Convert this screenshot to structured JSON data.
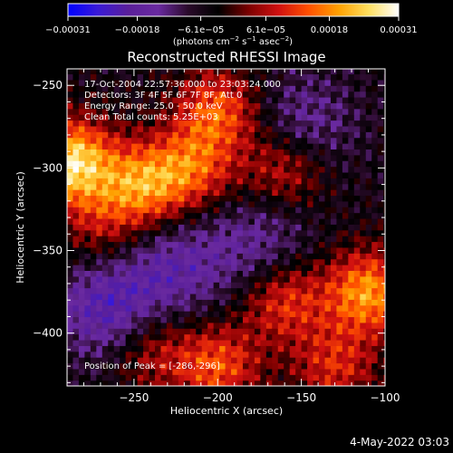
{
  "chart_data": {
    "type": "heatmap",
    "title": "Reconstructed RHESSI Image",
    "xlabel": "Heliocentric X (arcsec)",
    "ylabel": "Heliocentric Y (arcsec)",
    "xlim": [
      -290,
      -100
    ],
    "ylim": [
      -432,
      -240
    ],
    "x_ticks": [
      -250,
      -200,
      -150,
      -100
    ],
    "y_ticks": [
      -250,
      -300,
      -350,
      -400
    ],
    "colorbar": {
      "ticks": [
        -0.00031,
        -0.00018,
        -6.1e-05,
        6.1e-05,
        0.00018,
        0.00031
      ],
      "tick_labels": [
        "-0.00031",
        "-0.00018",
        "-6.1e-05",
        "6.1e-05",
        "0.00018",
        "0.00031"
      ],
      "vmin": -0.00031,
      "vmax": 0.00031,
      "unit_label": "(photons cm^-2 s^-1 asec^-2)",
      "colors": [
        "#0000ff",
        "#3a1ad6",
        "#5a1f9a",
        "#6a2aa0",
        "#2a0a2a",
        "#000000",
        "#7a0000",
        "#d01010",
        "#ff5000",
        "#ffa000",
        "#ffe060",
        "#ffffff"
      ]
    },
    "annotations": {
      "time_range": "17-Oct-2004 22:57:36.000  to 23:03:24.000",
      "detectors": "Detectors: 3F 4F 5F 6F 7F 8F, Att 0",
      "energy_range": "Energy Range: 25.0 - 50.0 keV",
      "clean_counts": "Clean     Total counts: 5.25E+03",
      "peak_position": "Position of Peak = [-286,-296]"
    },
    "peak": {
      "x": -286,
      "y": -296
    },
    "sources": [
      {
        "x": -288,
        "y": -296,
        "strength": 0.00031
      },
      {
        "x": -245,
        "y": -310,
        "strength": 0.00022
      },
      {
        "x": -200,
        "y": -265,
        "strength": 0.00019
      },
      {
        "x": -215,
        "y": -300,
        "strength": 0.00017
      },
      {
        "x": -160,
        "y": -300,
        "strength": 0.00015
      },
      {
        "x": -110,
        "y": -375,
        "strength": 0.00024
      },
      {
        "x": -160,
        "y": -380,
        "strength": 0.00016
      },
      {
        "x": -200,
        "y": -420,
        "strength": 0.00018
      },
      {
        "x": -130,
        "y": -420,
        "strength": 0.00014
      },
      {
        "x": -240,
        "y": -410,
        "strength": 0.00012
      },
      {
        "x": -270,
        "y": -335,
        "strength": 0.0001
      }
    ],
    "negative_regions": [
      {
        "x": -265,
        "y": -385,
        "strength": -0.00016
      },
      {
        "x": -225,
        "y": -360,
        "strength": -0.00012
      },
      {
        "x": -150,
        "y": -275,
        "strength": -0.00011
      },
      {
        "x": -175,
        "y": -345,
        "strength": -0.0001
      }
    ]
  },
  "footer": {
    "date": "4-May-2022 03:03"
  }
}
